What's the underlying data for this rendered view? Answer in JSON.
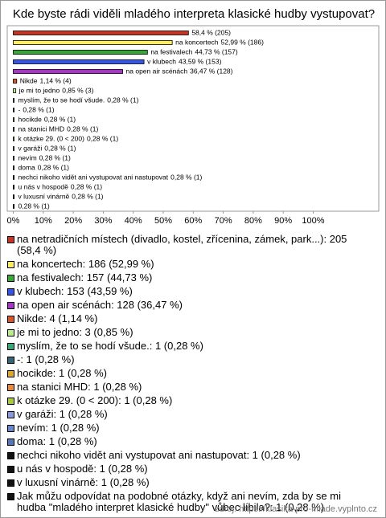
{
  "chart_data": {
    "type": "bar",
    "orientation": "horizontal",
    "title": "Kde byste rádi viděli mladého interpreta klasické hudby vystupovat?",
    "categories": [
      null,
      "na koncertech",
      "na festivalech",
      "v klubech",
      "na open air scénách",
      "Nikde",
      "je mi to jedno",
      "myslím, že to se hodí všude.",
      "-",
      "hocikde",
      "na stanici MHD",
      "k otázke 29. (0 < 200)",
      "v garáži",
      "nevím",
      "doma",
      "nechci nikoho vidět ani vystupovat ani nastupovat",
      "u nás v hospodě",
      "v luxusní vinárně",
      null
    ],
    "values": [
      58.4,
      52.99,
      44.73,
      43.59,
      36.47,
      1.14,
      0.85,
      0.28,
      0.28,
      0.28,
      0.28,
      0.28,
      0.28,
      0.28,
      0.28,
      0.28,
      0.28,
      0.28,
      0.28
    ],
    "value_labels": [
      "58,4 % (205)",
      "52,99 % (186)",
      "44,73 % (157)",
      "43,59 % (153)",
      "36,47 % (128)",
      "1,14 % (4)",
      "0,85 % (3)",
      "0,28 % (1)",
      "0,28 % (1)",
      "0,28 % (1)",
      "0,28 % (1)",
      "0,28 % (1)",
      "0,28 % (1)",
      "0,28 % (1)",
      "0,28 % (1)",
      "0,28 % (1)",
      "0,28 % (1)",
      "0,28 % (1)",
      "0,28 % (1)"
    ],
    "colors": [
      "#cc3322",
      "#ffee55",
      "#33aa33",
      "#3355ee",
      "#aa33cc",
      "#dd5522",
      "#bbee88",
      "#33aa77",
      "#336677",
      "#ddaa22",
      "#ee8833",
      "#aacc33",
      "#8899dd",
      "#6688cc",
      "#5577bb",
      "#111111",
      "#111111",
      "#111111",
      "#111111"
    ],
    "xlim": [
      0,
      120
    ],
    "xticks": [
      {
        "value": 0,
        "label": "0%"
      },
      {
        "value": 10,
        "label": "10%"
      },
      {
        "value": 20,
        "label": "20%"
      },
      {
        "value": 30,
        "label": "30%"
      },
      {
        "value": 40,
        "label": "40%"
      },
      {
        "value": 50,
        "label": "50%"
      },
      {
        "value": 60,
        "label": "60%"
      },
      {
        "value": 70,
        "label": "70%"
      },
      {
        "value": 80,
        "label": "80%"
      },
      {
        "value": 90,
        "label": "90%"
      },
      {
        "value": 100,
        "label": "100%"
      }
    ],
    "legend": [
      "na netradičních místech (divadlo, kostel, zřícenina, zámek, park...): 205 (58,4 %)",
      "na koncertech: 186 (52,99 %)",
      "na festivalech: 157 (44,73 %)",
      "v klubech: 153 (43,59 %)",
      "na open air scénách: 128 (36,47 %)",
      "Nikde: 4 (1,14 %)",
      "je mi to jedno: 3 (0,85 %)",
      "myslím, že to se hodí všude.: 1 (0,28 %)",
      "-: 1 (0,28 %)",
      "hocikde: 1 (0,28 %)",
      "na stanici MHD: 1 (0,28 %)",
      "k otázke 29. (0 < 200): 1 (0,28 %)",
      "v garáži: 1 (0,28 %)",
      "nevím: 1 (0,28 %)",
      "doma: 1 (0,28 %)",
      "nechci nikoho vidět ani vystupovat ani nastupovat: 1 (0,28 %)",
      "u nás v hospodě: 1 (0,28 %)",
      "v luxusní vinárně: 1 (0,28 %)",
      "Jak můžu odpovídat na podobné otázky, když ani nevím, zda by se mi hudba \"mladého interpret klasické hudby\" vůbec líbila?: 1 (0,28 %)"
    ],
    "source": "zdroj: https://klasika-pro-mlade.vyplnto.cz"
  }
}
